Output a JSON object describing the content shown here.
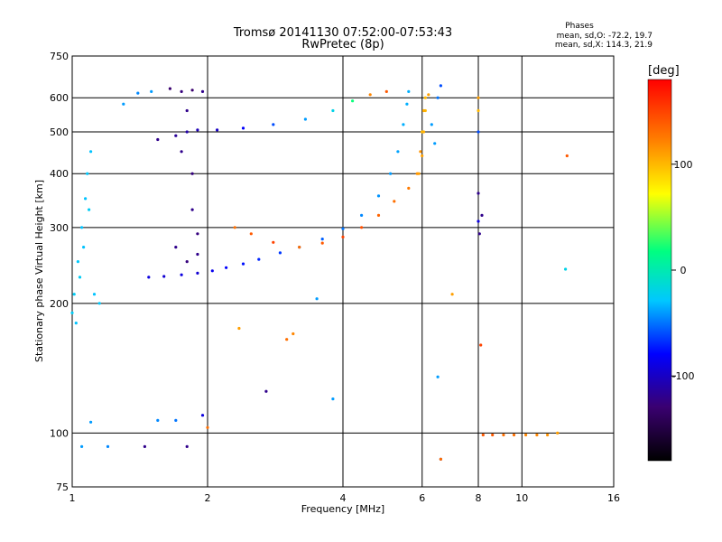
{
  "chart_data": {
    "type": "scatter",
    "title": "Tromsø 20141130 07:52:00-07:53:43",
    "subtitle": "RwPretec (8p)",
    "xlabel": "Frequency [MHz]",
    "ylabel": "Stationary phase Virtual Height [km]",
    "x_scale": "log",
    "y_scale": "log",
    "xlim": [
      1,
      16
    ],
    "ylim": [
      75,
      750
    ],
    "x_ticks": [
      1,
      2,
      4,
      6,
      8,
      10,
      16
    ],
    "x_tick_labels": [
      "1",
      "2",
      "4",
      "6",
      "8",
      "10",
      "16"
    ],
    "y_ticks": [
      75,
      100,
      200,
      300,
      400,
      500,
      600,
      750
    ],
    "y_tick_labels": [
      "75",
      "100",
      "200",
      "300",
      "400",
      "500",
      "600",
      "750"
    ],
    "grid": true,
    "stats": {
      "heading": "Phases",
      "line_o": "mean, sd,O: -72.2, 19.7",
      "line_x": "mean, sd,X: 114.3, 21.9"
    },
    "colorbar": {
      "label": "[deg]",
      "range": [
        -180,
        180
      ],
      "ticks": [
        100,
        0,
        -100
      ],
      "tick_labels": [
        "100",
        "0",
        "-100"
      ],
      "colormap": "rainbow",
      "colors": [
        "#000000",
        "#3a0070",
        "#0000ff",
        "#00c8ff",
        "#00ff80",
        "#ffff00",
        "#ff8000",
        "#ff0000"
      ]
    },
    "series": [
      {
        "values": [
          [
            1.0,
            190,
            -25
          ],
          [
            1.01,
            210,
            -25
          ],
          [
            1.03,
            250,
            -28
          ],
          [
            1.05,
            300,
            -30
          ],
          [
            1.07,
            350,
            -30
          ],
          [
            1.08,
            400,
            -28
          ],
          [
            1.1,
            450,
            -30
          ],
          [
            1.02,
            180,
            -30
          ],
          [
            1.04,
            230,
            -25
          ],
          [
            1.06,
            270,
            -30
          ],
          [
            1.09,
            330,
            -25
          ],
          [
            1.12,
            210,
            -30
          ],
          [
            1.15,
            200,
            -28
          ]
        ]
      },
      {
        "values": [
          [
            1.48,
            230,
            -90
          ],
          [
            1.6,
            231,
            -95
          ],
          [
            1.75,
            233,
            -90
          ],
          [
            1.9,
            235,
            -95
          ],
          [
            2.05,
            238,
            -85
          ],
          [
            2.2,
            242,
            -80
          ],
          [
            2.4,
            247,
            -75
          ],
          [
            2.6,
            253,
            -70
          ],
          [
            2.9,
            262,
            -65
          ],
          [
            3.2,
            270,
            -60
          ],
          [
            3.6,
            282,
            -55
          ],
          [
            4.0,
            298,
            -50
          ],
          [
            4.4,
            320,
            -45
          ],
          [
            4.8,
            355,
            -42
          ],
          [
            5.1,
            400,
            -40
          ],
          [
            5.3,
            450,
            -38
          ],
          [
            5.45,
            520,
            -35
          ],
          [
            5.55,
            580,
            -35
          ],
          [
            5.6,
            620,
            -35
          ]
        ]
      },
      {
        "values": [
          [
            2.3,
            300,
            130
          ],
          [
            2.5,
            290,
            140
          ],
          [
            2.8,
            277,
            150
          ],
          [
            3.2,
            270,
            130
          ],
          [
            3.6,
            276,
            140
          ],
          [
            4.0,
            285,
            150
          ],
          [
            4.4,
            300,
            145
          ],
          [
            4.8,
            320,
            135
          ],
          [
            5.2,
            345,
            130
          ],
          [
            5.6,
            370,
            125
          ],
          [
            5.85,
            400,
            115
          ],
          [
            6.0,
            440,
            110
          ],
          [
            6.05,
            500,
            105
          ],
          [
            6.1,
            560,
            100
          ]
        ]
      },
      {
        "values": [
          [
            1.55,
            480,
            -120
          ],
          [
            1.7,
            490,
            -115
          ],
          [
            1.8,
            500,
            -110
          ],
          [
            1.9,
            505,
            -105
          ],
          [
            2.1,
            505,
            -100
          ],
          [
            2.4,
            510,
            -80
          ],
          [
            2.8,
            520,
            -60
          ],
          [
            3.3,
            535,
            -40
          ],
          [
            3.8,
            560,
            -20
          ],
          [
            4.2,
            590,
            20
          ],
          [
            4.6,
            610,
            120
          ],
          [
            5.0,
            620,
            140
          ]
        ]
      },
      {
        "values": [
          [
            1.65,
            630,
            -130
          ],
          [
            1.75,
            620,
            -125
          ],
          [
            1.85,
            625,
            -130
          ],
          [
            1.95,
            620,
            -120
          ],
          [
            1.8,
            560,
            -120
          ],
          [
            1.85,
            330,
            -120
          ],
          [
            1.9,
            290,
            -125
          ],
          [
            1.7,
            270,
            -120
          ],
          [
            1.8,
            250,
            -125
          ],
          [
            1.9,
            260,
            -120
          ],
          [
            1.75,
            450,
            -120
          ],
          [
            1.85,
            400,
            -125
          ]
        ]
      },
      {
        "values": [
          [
            5.9,
            400,
            110
          ],
          [
            5.95,
            450,
            115
          ],
          [
            6.0,
            500,
            100
          ],
          [
            6.05,
            560,
            105
          ],
          [
            6.1,
            600,
            100
          ],
          [
            6.2,
            610,
            110
          ],
          [
            6.3,
            520,
            -40
          ],
          [
            6.4,
            470,
            -40
          ],
          [
            6.5,
            600,
            -50
          ],
          [
            6.6,
            640,
            -60
          ]
        ]
      },
      {
        "values": [
          [
            8.2,
            99,
            140
          ],
          [
            8.6,
            99,
            140
          ],
          [
            9.1,
            99,
            130
          ],
          [
            9.6,
            99,
            130
          ],
          [
            10.2,
            99,
            120
          ],
          [
            10.8,
            99,
            120
          ],
          [
            11.4,
            99,
            115
          ],
          [
            12.0,
            100,
            110
          ]
        ]
      },
      {
        "values": [
          [
            8.0,
            600,
            110
          ],
          [
            8.0,
            560,
            100
          ],
          [
            8.0,
            500,
            -60
          ],
          [
            8.0,
            360,
            -120
          ],
          [
            8.0,
            310,
            -90
          ],
          [
            8.05,
            290,
            -120
          ],
          [
            8.1,
            160,
            150
          ],
          [
            8.15,
            320,
            -120
          ]
        ]
      },
      {
        "values": [
          [
            1.05,
            93,
            -40
          ],
          [
            1.2,
            93,
            -45
          ],
          [
            1.45,
            93,
            -120
          ],
          [
            1.8,
            93,
            -120
          ],
          [
            1.7,
            107,
            -50
          ],
          [
            1.55,
            107,
            -45
          ],
          [
            1.1,
            106,
            -40
          ],
          [
            1.95,
            110,
            -90
          ],
          [
            2.0,
            103,
            130
          ],
          [
            2.7,
            125,
            -120
          ],
          [
            3.0,
            165,
            130
          ],
          [
            3.1,
            170,
            120
          ],
          [
            2.35,
            175,
            110
          ],
          [
            3.5,
            205,
            -40
          ],
          [
            3.8,
            120,
            -40
          ],
          [
            6.5,
            135,
            -40
          ],
          [
            6.6,
            87,
            -120
          ],
          [
            6.6,
            87,
            130
          ],
          [
            7.0,
            210,
            110
          ],
          [
            12.6,
            440,
            140
          ],
          [
            12.5,
            240,
            -20
          ],
          [
            1.5,
            620,
            -40
          ],
          [
            1.4,
            615,
            -45
          ],
          [
            1.3,
            580,
            -40
          ]
        ]
      }
    ]
  }
}
